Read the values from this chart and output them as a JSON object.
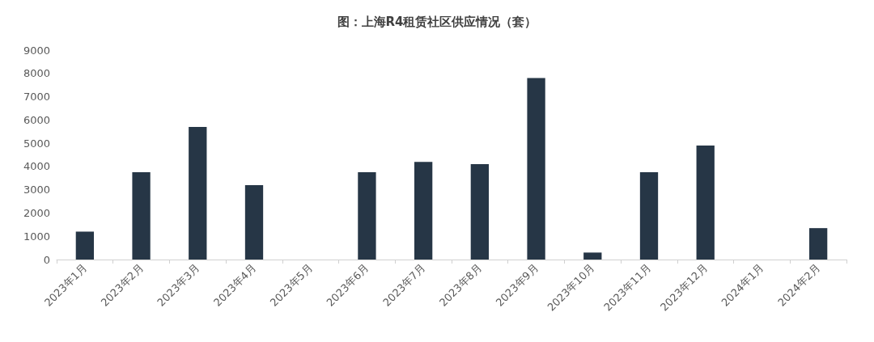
{
  "chart_data": {
    "type": "bar",
    "title": "图：上海R4租赁社区供应情况（套）",
    "categories": [
      "2023年1月",
      "2023年2月",
      "2023年3月",
      "2023年4月",
      "2023年5月",
      "2023年6月",
      "2023年7月",
      "2023年8月",
      "2023年9月",
      "2023年10月",
      "2023年11月",
      "2023年12月",
      "2024年1月",
      "2024年2月"
    ],
    "values": [
      1200,
      3750,
      5700,
      3200,
      0,
      3750,
      4200,
      4100,
      7800,
      300,
      3750,
      4900,
      0,
      1350
    ],
    "color": "#263646",
    "ylim": [
      0,
      9000
    ],
    "yticks": [
      0,
      1000,
      2000,
      3000,
      4000,
      5000,
      6000,
      7000,
      8000,
      9000
    ],
    "grid": false
  }
}
